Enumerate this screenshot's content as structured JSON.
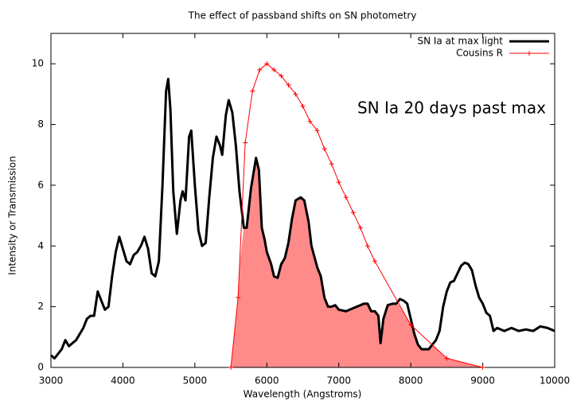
{
  "chart_data": {
    "type": "line",
    "title": "The effect of passband shifts on SN photometry",
    "xlabel": "Wavelength (Angstroms)",
    "ylabel": "Intensity or Transmission",
    "annotation": "SN Ia 20 days past max",
    "xlim": [
      3000,
      10000
    ],
    "ylim": [
      0,
      11
    ],
    "xticks": [
      3000,
      4000,
      5000,
      6000,
      7000,
      8000,
      9000,
      10000
    ],
    "yticks": [
      0,
      2,
      4,
      6,
      8,
      10
    ],
    "grid": false,
    "legend": "top-right",
    "fill_color": "#ff8a8a",
    "series": [
      {
        "name": "SN Ia at max light",
        "color": "#000000",
        "markers": false,
        "x": [
          3000,
          3050,
          3100,
          3150,
          3200,
          3250,
          3300,
          3350,
          3400,
          3450,
          3500,
          3550,
          3600,
          3650,
          3700,
          3750,
          3800,
          3850,
          3900,
          3950,
          4000,
          4050,
          4100,
          4150,
          4200,
          4250,
          4300,
          4350,
          4400,
          4450,
          4500,
          4550,
          4600,
          4630,
          4660,
          4700,
          4750,
          4800,
          4830,
          4870,
          4920,
          4950,
          5000,
          5050,
          5100,
          5150,
          5200,
          5250,
          5300,
          5350,
          5380,
          5430,
          5470,
          5520,
          5570,
          5620,
          5680,
          5720,
          5780,
          5850,
          5890,
          5930,
          5970,
          6000,
          6060,
          6100,
          6150,
          6200,
          6250,
          6300,
          6350,
          6400,
          6470,
          6520,
          6580,
          6620,
          6700,
          6750,
          6800,
          6850,
          6900,
          6950,
          7000,
          7100,
          7200,
          7300,
          7350,
          7400,
          7450,
          7500,
          7550,
          7580,
          7620,
          7680,
          7750,
          7800,
          7850,
          7900,
          7950,
          8000,
          8050,
          8100,
          8150,
          8200,
          8250,
          8300,
          8350,
          8400,
          8450,
          8500,
          8550,
          8600,
          8650,
          8700,
          8750,
          8800,
          8850,
          8900,
          8950,
          9000,
          9050,
          9100,
          9150,
          9200,
          9300,
          9400,
          9500,
          9600,
          9700,
          9800,
          9900,
          10000
        ],
        "values": [
          0.4,
          0.3,
          0.45,
          0.6,
          0.9,
          0.7,
          0.8,
          0.9,
          1.1,
          1.3,
          1.6,
          1.7,
          1.7,
          2.5,
          2.2,
          1.9,
          2.0,
          3.0,
          3.8,
          4.3,
          3.9,
          3.5,
          3.4,
          3.7,
          3.8,
          4.0,
          4.3,
          3.9,
          3.1,
          3.0,
          3.5,
          6.0,
          9.1,
          9.5,
          8.5,
          5.8,
          4.4,
          5.5,
          5.8,
          5.5,
          7.6,
          7.8,
          6.0,
          4.5,
          4.0,
          4.1,
          5.6,
          6.9,
          7.6,
          7.3,
          7.0,
          8.3,
          8.8,
          8.4,
          7.3,
          5.8,
          4.6,
          4.6,
          5.9,
          6.9,
          6.5,
          4.6,
          4.2,
          3.8,
          3.4,
          3.0,
          2.95,
          3.4,
          3.6,
          4.1,
          4.9,
          5.5,
          5.6,
          5.5,
          4.8,
          4.0,
          3.3,
          3.0,
          2.3,
          2.0,
          2.0,
          2.05,
          1.9,
          1.85,
          1.95,
          2.05,
          2.1,
          2.1,
          1.85,
          1.85,
          1.7,
          0.8,
          1.6,
          2.05,
          2.1,
          2.1,
          2.25,
          2.2,
          2.1,
          1.6,
          1.1,
          0.75,
          0.6,
          0.6,
          0.6,
          0.75,
          0.9,
          1.2,
          2.0,
          2.5,
          2.8,
          2.85,
          3.1,
          3.35,
          3.45,
          3.4,
          3.2,
          2.7,
          2.3,
          2.1,
          1.8,
          1.7,
          1.2,
          1.3,
          1.2,
          1.3,
          1.2,
          1.25,
          1.2,
          1.35,
          1.3,
          1.2
        ]
      },
      {
        "name": "Cousins R",
        "color": "#ff0000",
        "markers": true,
        "x": [
          5500,
          5600,
          5700,
          5800,
          5900,
          6000,
          6100,
          6200,
          6300,
          6400,
          6500,
          6600,
          6700,
          6800,
          6900,
          7000,
          7100,
          7200,
          7300,
          7400,
          7500,
          8000,
          8500,
          9000
        ],
        "values": [
          0,
          2.3,
          7.4,
          9.1,
          9.8,
          10.0,
          9.8,
          9.6,
          9.3,
          9.0,
          8.6,
          8.1,
          7.8,
          7.2,
          6.7,
          6.1,
          5.6,
          5.1,
          4.6,
          4.0,
          3.5,
          1.4,
          0.3,
          0
        ]
      }
    ]
  }
}
